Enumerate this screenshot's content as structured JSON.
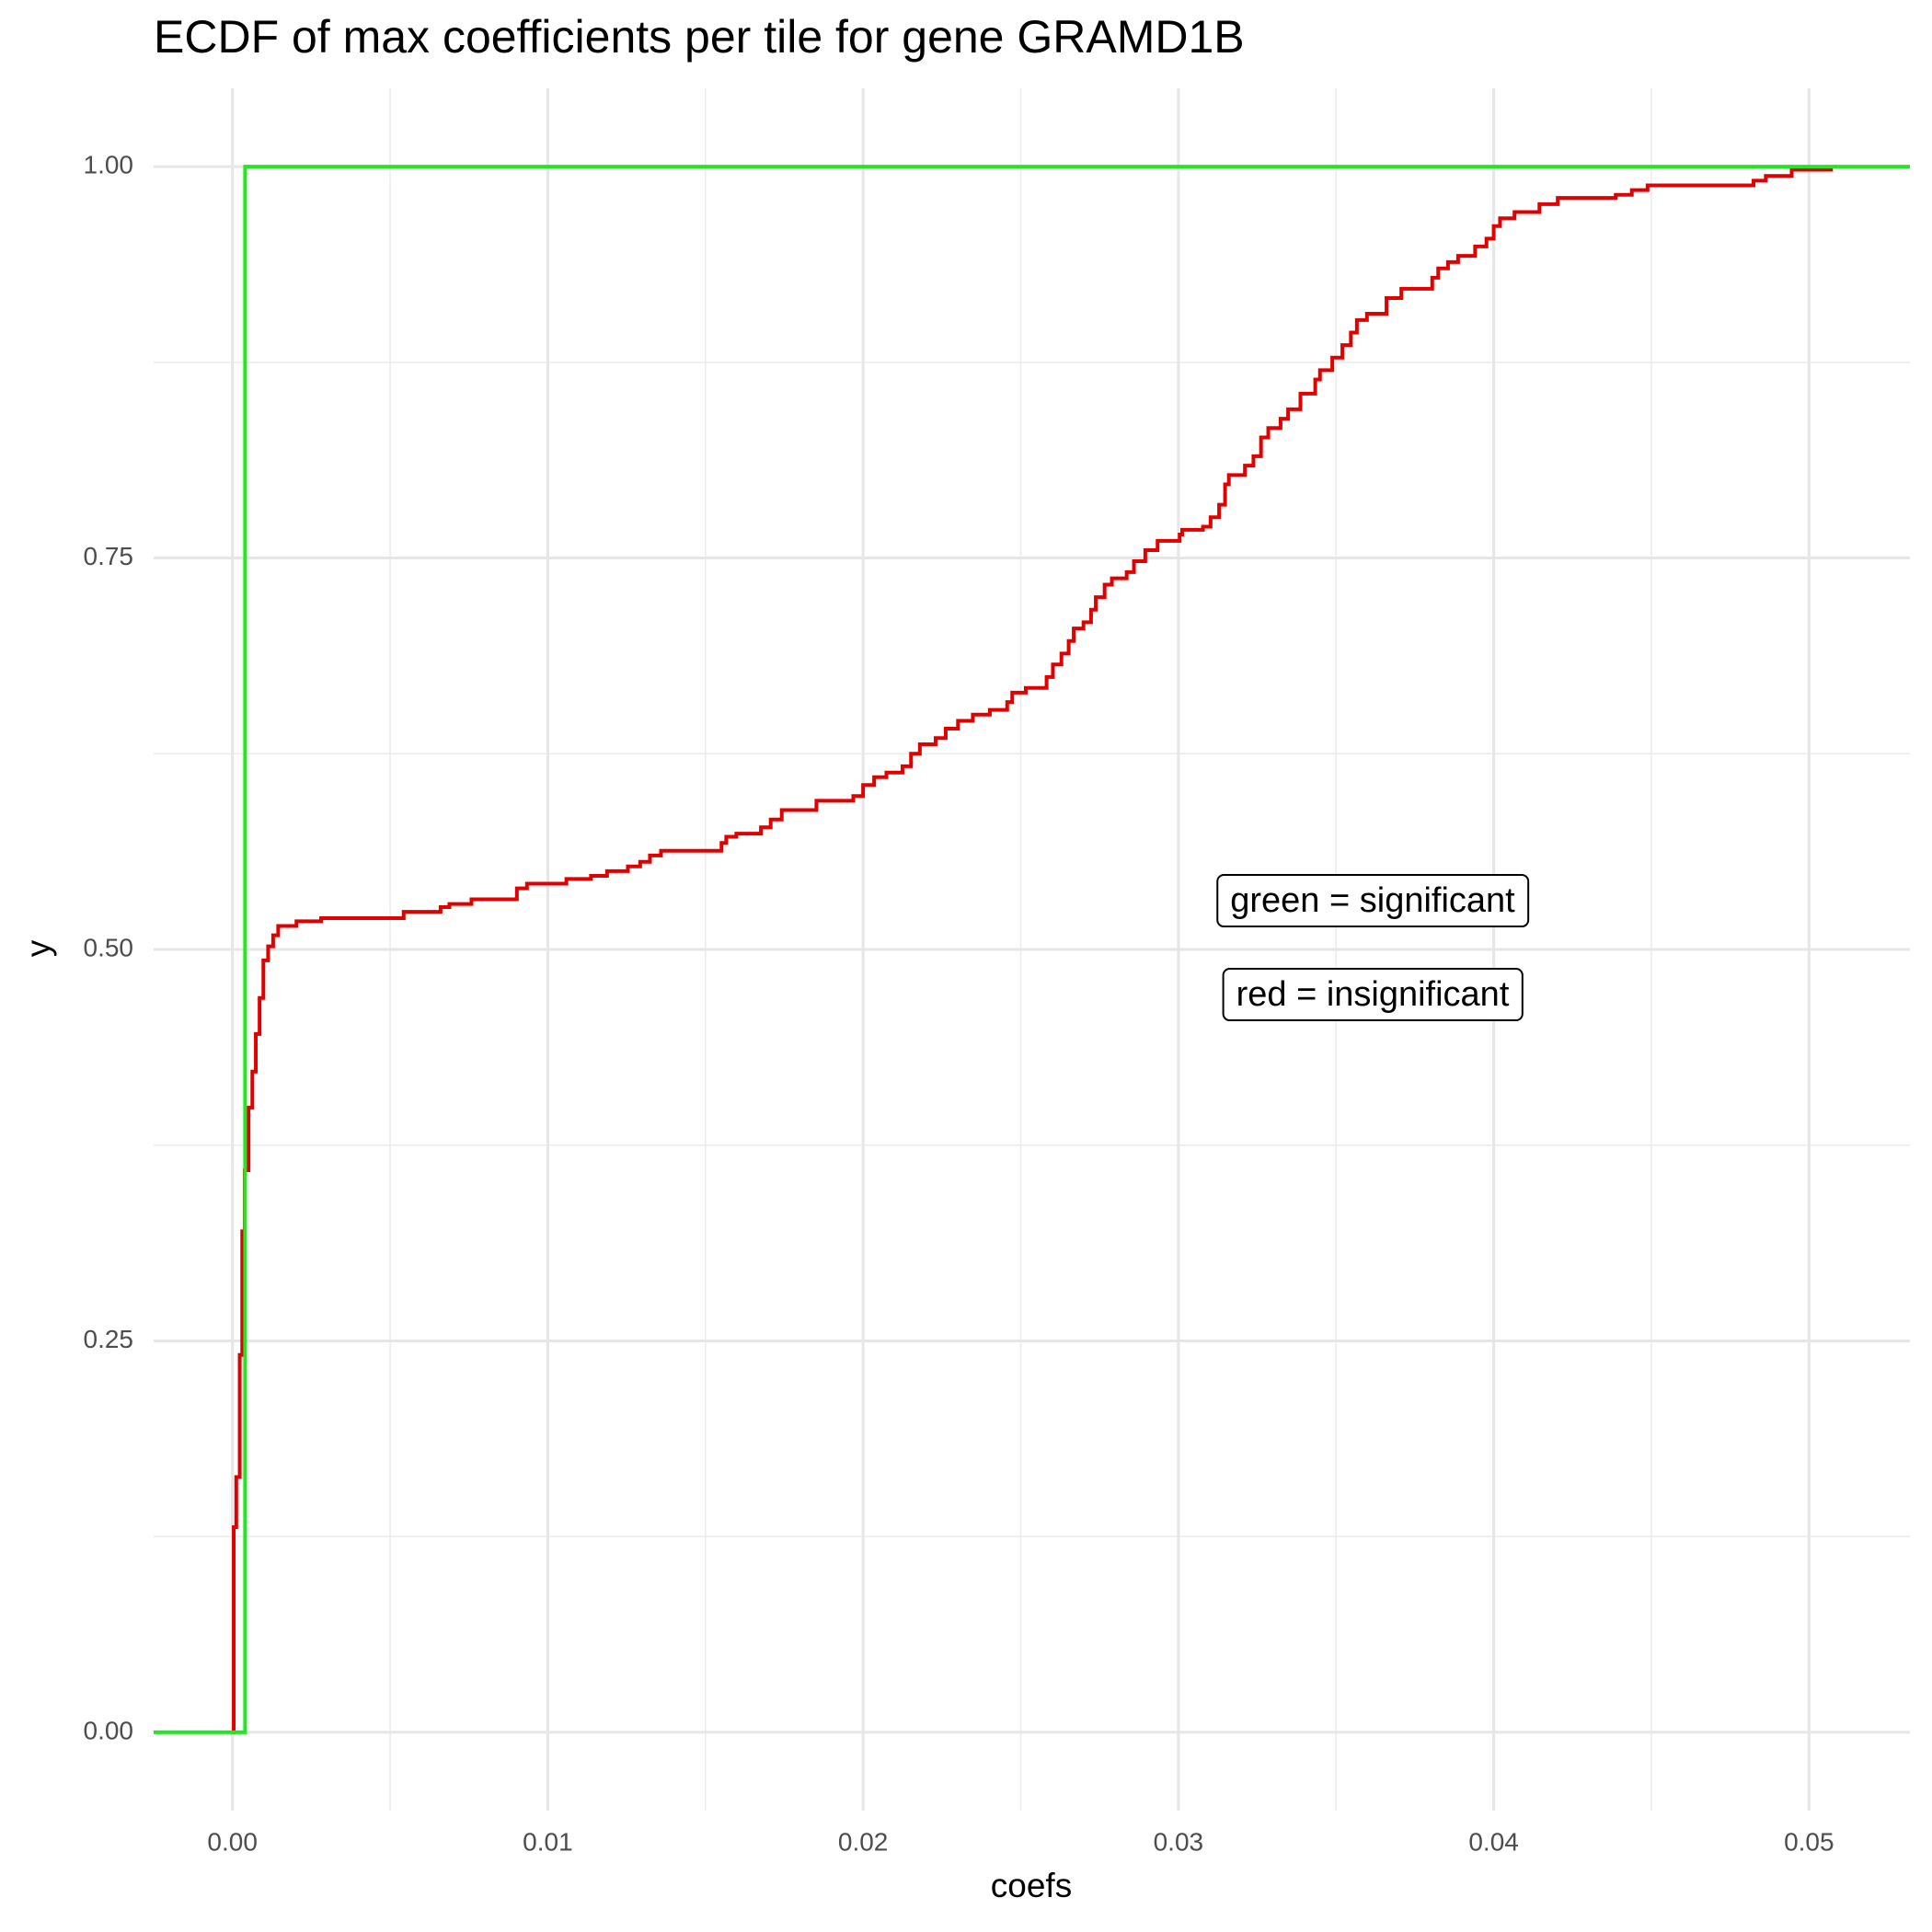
{
  "chart_data": {
    "type": "step",
    "title": "ECDF of max coefficients per tile for gene GRAMD1B",
    "x_label": "coefs",
    "y_label": "y",
    "xlim": [
      -0.0025,
      0.0532
    ],
    "ylim": [
      -0.05,
      1.05
    ],
    "xticks": [
      {
        "value": 0,
        "label": "0.00"
      },
      {
        "value": 0.01,
        "label": "0.01"
      },
      {
        "value": 0.02,
        "label": "0.02"
      },
      {
        "value": 0.03,
        "label": "0.03"
      },
      {
        "value": 0.04,
        "label": "0.04"
      },
      {
        "value": 0.05,
        "label": "0.05"
      }
    ],
    "yticks": [
      {
        "value": 0,
        "label": "0.00"
      },
      {
        "value": 0.25,
        "label": "0.25"
      },
      {
        "value": 0.5,
        "label": "0.50"
      },
      {
        "value": 0.75,
        "label": "0.75"
      },
      {
        "value": 1,
        "label": "1.00"
      }
    ],
    "grid": true,
    "minor_grid": true,
    "annotations": [
      "green = significant",
      "red = insignificant"
    ],
    "series": [
      {
        "color": "#e00000",
        "x": [
          0,
          4e-05,
          0.00012,
          0.00023,
          0.00031,
          0.00039,
          0.00051,
          0.00063,
          0.00074,
          0.00086,
          0.00098,
          0.00113,
          0.00129,
          0.00145,
          0.00203,
          0.00281,
          0.00543,
          0.0066,
          0.00688,
          0.00758,
          0.00902,
          0.00934,
          0.01059,
          0.01137,
          0.01188,
          0.01254,
          0.01293,
          0.01324,
          0.01359,
          0.01551,
          0.01566,
          0.01598,
          0.01676,
          0.01707,
          0.01742,
          0.01852,
          0.01969,
          0.02,
          0.02035,
          0.02074,
          0.02125,
          0.02152,
          0.0218,
          0.0223,
          0.02262,
          0.02301,
          0.02348,
          0.02402,
          0.02457,
          0.02473,
          0.02516,
          0.02582,
          0.02602,
          0.02629,
          0.02652,
          0.02668,
          0.02699,
          0.02723,
          0.02738,
          0.02766,
          0.02789,
          0.02836,
          0.02859,
          0.02895,
          0.02934,
          0.03004,
          0.03012,
          0.03078,
          0.03102,
          0.03129,
          0.03148,
          0.0316,
          0.03211,
          0.03238,
          0.03262,
          0.03285,
          0.03324,
          0.03348,
          0.03387,
          0.03434,
          0.03449,
          0.03488,
          0.0352,
          0.03547,
          0.03566,
          0.03598,
          0.0366,
          0.03707,
          0.03805,
          0.03824,
          0.03855,
          0.03887,
          0.03941,
          0.03977,
          0.04,
          0.0402,
          0.04066,
          0.04145,
          0.04203,
          0.04387,
          0.04438,
          0.04488,
          0.04824,
          0.04863,
          0.04945,
          0.0507
        ],
        "values": [
          0,
          0.131,
          0.163,
          0.241,
          0.32,
          0.359,
          0.399,
          0.422,
          0.446,
          0.469,
          0.493,
          0.502,
          0.509,
          0.515,
          0.518,
          0.52,
          0.524,
          0.527,
          0.529,
          0.532,
          0.539,
          0.542,
          0.545,
          0.547,
          0.55,
          0.553,
          0.556,
          0.56,
          0.563,
          0.568,
          0.572,
          0.574,
          0.578,
          0.583,
          0.589,
          0.595,
          0.598,
          0.605,
          0.61,
          0.613,
          0.617,
          0.625,
          0.631,
          0.635,
          0.641,
          0.646,
          0.65,
          0.653,
          0.658,
          0.664,
          0.667,
          0.674,
          0.682,
          0.689,
          0.697,
          0.705,
          0.709,
          0.717,
          0.725,
          0.733,
          0.737,
          0.741,
          0.748,
          0.755,
          0.761,
          0.765,
          0.768,
          0.77,
          0.776,
          0.784,
          0.797,
          0.803,
          0.809,
          0.815,
          0.827,
          0.833,
          0.839,
          0.845,
          0.855,
          0.864,
          0.87,
          0.878,
          0.886,
          0.894,
          0.902,
          0.906,
          0.916,
          0.922,
          0.929,
          0.935,
          0.939,
          0.943,
          0.949,
          0.954,
          0.962,
          0.967,
          0.971,
          0.976,
          0.98,
          0.982,
          0.985,
          0.988,
          0.991,
          0.994,
          0.998,
          1
        ]
      },
      {
        "color": "#22e822",
        "x": [
          -0.0025,
          0.0004,
          0.0532
        ],
        "values": [
          0,
          1,
          1
        ]
      }
    ]
  }
}
